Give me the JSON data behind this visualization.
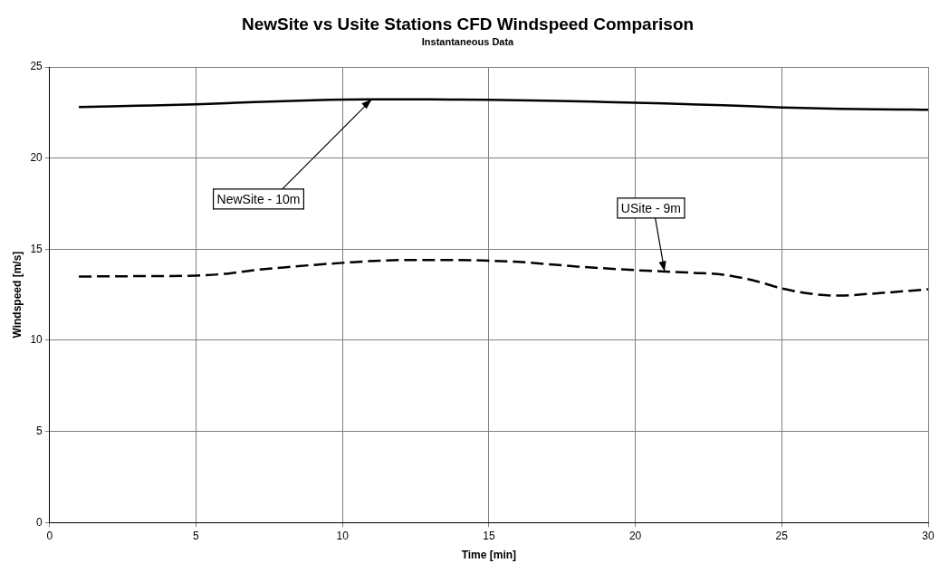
{
  "chart_data": {
    "type": "line",
    "title": "NewSite vs Usite Stations CFD Windspeed Comparison",
    "subtitle": "Instantaneous Data",
    "xlabel": "Time [min]",
    "ylabel": "Windspeed [m/s]",
    "xlim": [
      0,
      30
    ],
    "xticks": [
      0,
      5,
      10,
      15,
      20,
      25,
      30
    ],
    "ylim": [
      0,
      25
    ],
    "yticks": [
      0,
      5,
      10,
      15,
      20,
      25
    ],
    "grid": true,
    "legend": false,
    "marker": "none",
    "series": [
      {
        "color": "#000000",
        "line_style": "solid",
        "x": [
          1,
          3,
          5,
          7,
          9,
          11,
          13,
          15,
          17,
          19,
          21,
          23,
          25,
          27,
          29,
          30
        ],
        "values": [
          22.8,
          22.87,
          22.95,
          23.08,
          23.18,
          23.22,
          23.22,
          23.2,
          23.15,
          23.08,
          23.0,
          22.9,
          22.78,
          22.7,
          22.67,
          22.65
        ]
      },
      {
        "color": "#000000",
        "line_style": "dashed",
        "x": [
          1,
          3,
          5,
          6,
          7,
          8,
          10,
          12,
          14,
          16,
          18,
          20,
          22,
          23,
          24,
          25,
          26,
          27,
          28,
          30
        ],
        "values": [
          13.5,
          13.52,
          13.55,
          13.65,
          13.85,
          14.0,
          14.25,
          14.4,
          14.4,
          14.3,
          14.05,
          13.85,
          13.7,
          13.6,
          13.3,
          12.85,
          12.55,
          12.45,
          12.55,
          12.8
        ]
      }
    ],
    "annotations": [
      {
        "text": "NewSite - 10m",
        "x": 11,
        "y": 23.22
      },
      {
        "text": "USite - 9m",
        "x": 21,
        "y": 13.78
      }
    ]
  }
}
